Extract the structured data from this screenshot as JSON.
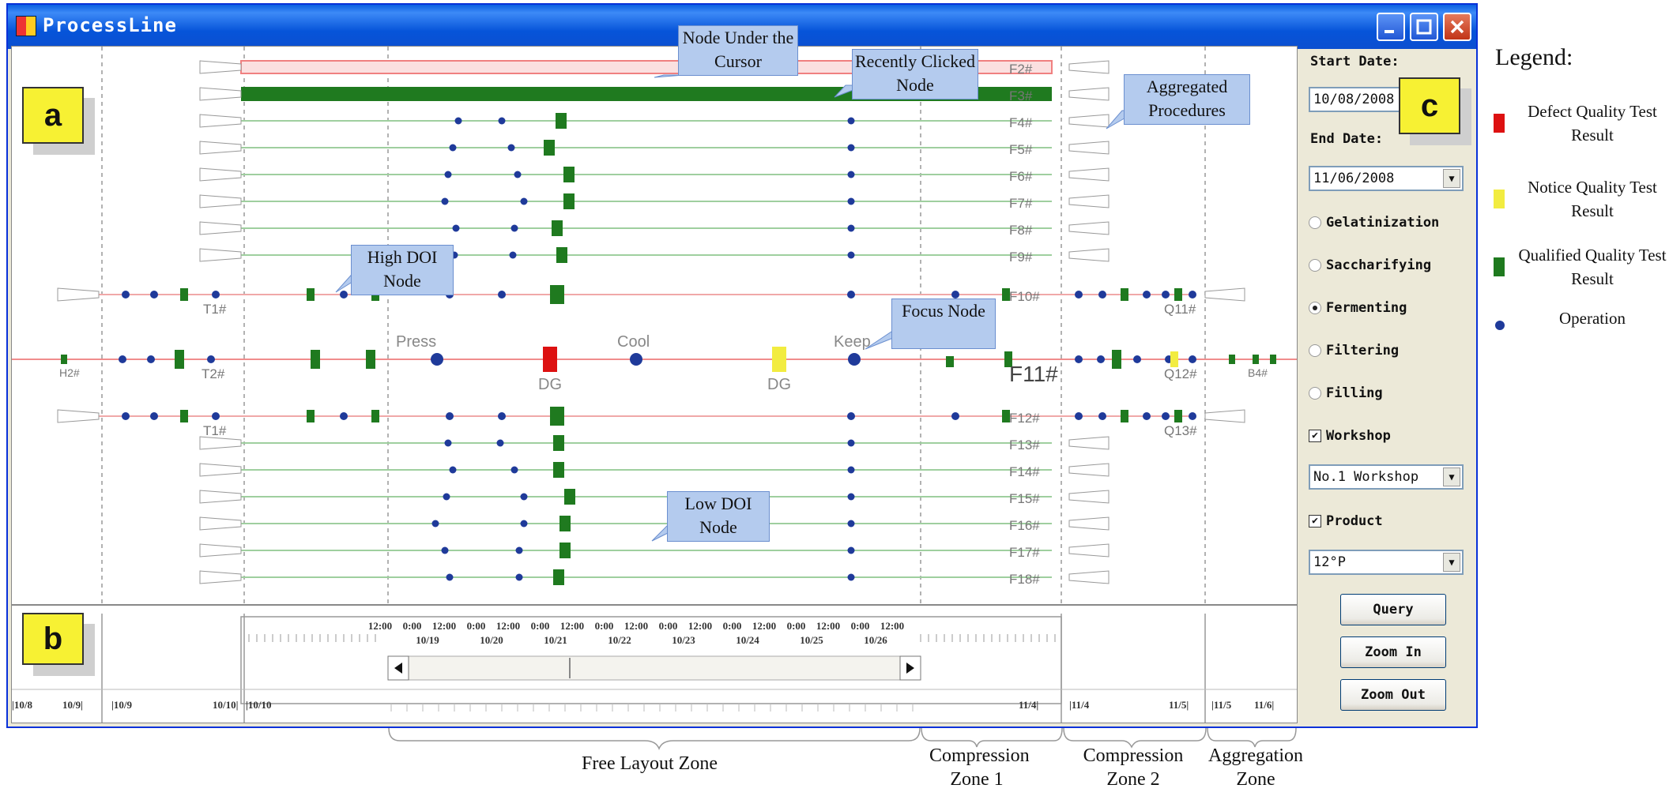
{
  "window": {
    "title": "ProcessLine"
  },
  "labels": {
    "a": "a",
    "b": "b",
    "c": "c"
  },
  "canvas": {
    "rows": [
      {
        "name": "F2#",
        "style": "highlight-outline"
      },
      {
        "name": "F3#",
        "style": "highlight-fill"
      },
      {
        "name": "F4#"
      },
      {
        "name": "F5#"
      },
      {
        "name": "F6#"
      },
      {
        "name": "F7#"
      },
      {
        "name": "F8#"
      },
      {
        "name": "F9#"
      },
      {
        "name": "F10#"
      },
      {
        "name": "F11#",
        "focus": true
      },
      {
        "name": "F12#"
      },
      {
        "name": "F13#"
      },
      {
        "name": "F14#"
      },
      {
        "name": "F15#"
      },
      {
        "name": "F16#"
      },
      {
        "name": "F17#"
      },
      {
        "name": "F18#"
      }
    ],
    "operations": {
      "press": "Press",
      "cool": "Cool",
      "keep": "Keep"
    },
    "quality_labels": {
      "defect": "DG",
      "notice": "DG"
    },
    "side_labels": {
      "h2": "H2#",
      "t1_top": "T1#",
      "t2": "T2#",
      "t1_bottom": "T1#",
      "q11": "Q11#",
      "q12": "Q12#",
      "q13": "Q13#",
      "b4": "B4#"
    }
  },
  "callouts": {
    "node_under_cursor": "Node Under the Cursor",
    "recently_clicked": "Recently Clicked Node",
    "aggregated": "Aggregated Procedures",
    "high_doi": "High DOI Node",
    "focus": "Focus Node",
    "low_doi": "Low DOI Node"
  },
  "timeline": {
    "hour_labels": [
      "12:00",
      "0:00",
      "12:00",
      "0:00",
      "12:00",
      "0:00",
      "12:00",
      "0:00",
      "12:00",
      "0:00",
      "12:00",
      "0:00",
      "12:00",
      "0:00",
      "12:00",
      "0:00",
      "12:00"
    ],
    "day_labels": [
      "10/19",
      "10/20",
      "10/21",
      "10/22",
      "10/23",
      "10/24",
      "10/25",
      "10/26"
    ],
    "range_labels": [
      "|10/8",
      "10/9|",
      "|10/9",
      "10/10|",
      "|10/10",
      "11/4|",
      "|11/4",
      "11/5|",
      "|11/5",
      "11/6|"
    ]
  },
  "panel": {
    "start_label": "Start Date:",
    "start_value": "10/08/2008",
    "end_label": "End Date:",
    "end_value": "11/06/2008",
    "procedures": [
      {
        "label": "Gelatinization",
        "selected": false
      },
      {
        "label": "Saccharifying",
        "selected": false
      },
      {
        "label": "Fermenting",
        "selected": true
      },
      {
        "label": "Filtering",
        "selected": false
      },
      {
        "label": "Filling",
        "selected": false
      }
    ],
    "workshop_label": "Workshop",
    "workshop_checked": true,
    "workshop_value": "No.1 Workshop",
    "product_label": "Product",
    "product_checked": true,
    "product_value": "12°P",
    "query": "Query",
    "zoom_in": "Zoom In",
    "zoom_out": "Zoom Out"
  },
  "legend": {
    "title": "Legend:",
    "items": [
      {
        "label": "Defect Quality Test Result",
        "color": "#dd1111"
      },
      {
        "label": "Notice Quality Test Result",
        "color": "#f2ec40"
      },
      {
        "label": "Qualified Quality Test Result",
        "color": "#1f7a1f"
      },
      {
        "label": "Operation",
        "color": "#1f3a9a"
      }
    ]
  },
  "zones": {
    "free": "Free Layout Zone",
    "comp1": "Compression Zone 1",
    "comp2": "Compression Zone 2",
    "agg": "Aggregation Zone"
  }
}
